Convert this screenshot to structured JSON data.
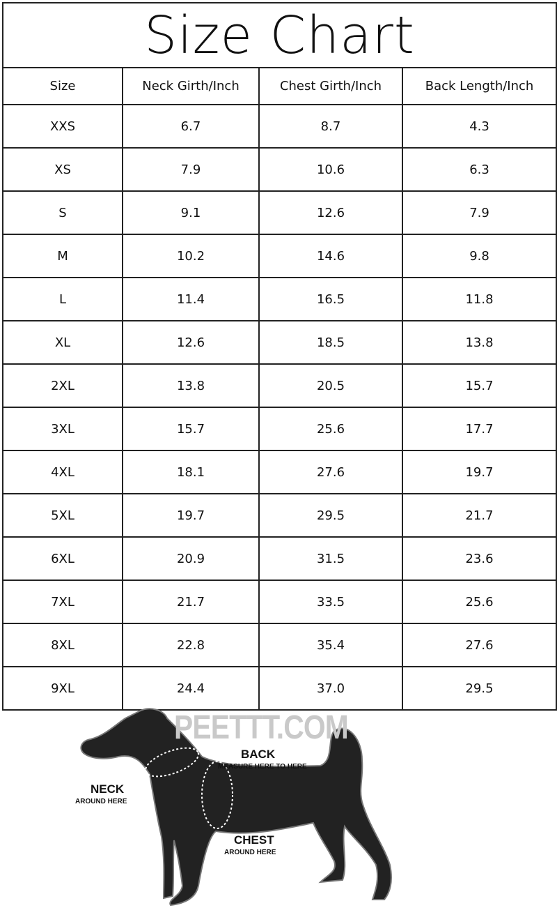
{
  "title": "Size Chart",
  "columns": [
    "Size",
    "Neck Girth/Inch",
    "Chest Girth/Inch",
    "Back Length/Inch"
  ],
  "rows": [
    [
      "XXS",
      "6.7",
      "8.7",
      "4.3"
    ],
    [
      "XS",
      "7.9",
      "10.6",
      "6.3"
    ],
    [
      "S",
      "9.1",
      "12.6",
      "7.9"
    ],
    [
      "M",
      "10.2",
      "14.6",
      "9.8"
    ],
    [
      "L",
      "11.4",
      "16.5",
      "11.8"
    ],
    [
      "XL",
      "12.6",
      "18.5",
      "13.8"
    ],
    [
      "2XL",
      "13.8",
      "20.5",
      "15.7"
    ],
    [
      "3XL",
      "15.7",
      "25.6",
      "17.7"
    ],
    [
      "4XL",
      "18.1",
      "27.6",
      "19.7"
    ],
    [
      "5XL",
      "19.7",
      "29.5",
      "21.7"
    ],
    [
      "6XL",
      "20.9",
      "31.5",
      "23.6"
    ],
    [
      "7XL",
      "21.7",
      "33.5",
      "25.6"
    ],
    [
      "8XL",
      "22.8",
      "35.4",
      "27.6"
    ],
    [
      "9XL",
      "24.4",
      "37.0",
      "29.5"
    ]
  ],
  "diagram": {
    "watermark": "PEETTT.COM",
    "back_label": "BACK",
    "back_sub": "MEASURE HERE TO HERE",
    "neck_label": "NECK",
    "neck_sub": "AROUND HERE",
    "chest_label": "CHEST",
    "chest_sub": "AROUND HERE",
    "icon": "dog-silhouette"
  }
}
